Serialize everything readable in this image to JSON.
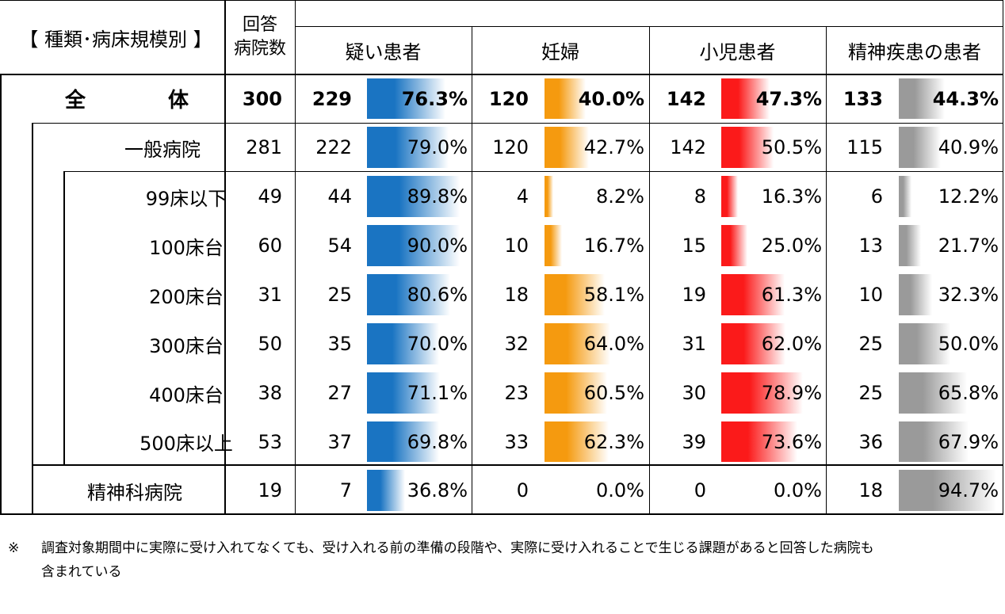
{
  "header": {
    "category_label": "【 種類･病床規模別 】",
    "respondents_label_1": "回答",
    "respondents_label_2": "病院数",
    "columns": [
      "疑い患者",
      "妊婦",
      "小児患者",
      "精神疾患の患者"
    ]
  },
  "colors": {
    "疑い患者": "#1a74c2",
    "妊婦": "#f59a0f",
    "小児患者": "#fb1a1a",
    "精神疾患の患者": "#9a9a9a"
  },
  "chart_data": {
    "type": "table",
    "columns": [
      "疑い患者",
      "妊婦",
      "小児患者",
      "精神疾患の患者"
    ],
    "rows": [
      {
        "label": "全　　　　体",
        "total": 300,
        "values": [
          [
            229,
            "76.3%"
          ],
          [
            120,
            "40.0%"
          ],
          [
            142,
            "47.3%"
          ],
          [
            133,
            "44.3%"
          ]
        ],
        "pcts": [
          76.3,
          40.0,
          47.3,
          44.3
        ]
      },
      {
        "label": "一般病院",
        "total": 281,
        "values": [
          [
            222,
            "79.0%"
          ],
          [
            120,
            "42.7%"
          ],
          [
            142,
            "50.5%"
          ],
          [
            115,
            "40.9%"
          ]
        ],
        "pcts": [
          79.0,
          42.7,
          50.5,
          40.9
        ]
      },
      {
        "label": "99床以下",
        "total": 49,
        "values": [
          [
            44,
            "89.8%"
          ],
          [
            4,
            "8.2%"
          ],
          [
            8,
            "16.3%"
          ],
          [
            6,
            "12.2%"
          ]
        ],
        "pcts": [
          89.8,
          8.2,
          16.3,
          12.2
        ]
      },
      {
        "label": "100床台",
        "total": 60,
        "values": [
          [
            54,
            "90.0%"
          ],
          [
            10,
            "16.7%"
          ],
          [
            15,
            "25.0%"
          ],
          [
            13,
            "21.7%"
          ]
        ],
        "pcts": [
          90.0,
          16.7,
          25.0,
          21.7
        ]
      },
      {
        "label": "200床台",
        "total": 31,
        "values": [
          [
            25,
            "80.6%"
          ],
          [
            18,
            "58.1%"
          ],
          [
            19,
            "61.3%"
          ],
          [
            10,
            "32.3%"
          ]
        ],
        "pcts": [
          80.6,
          58.1,
          61.3,
          32.3
        ]
      },
      {
        "label": "300床台",
        "total": 50,
        "values": [
          [
            35,
            "70.0%"
          ],
          [
            32,
            "64.0%"
          ],
          [
            31,
            "62.0%"
          ],
          [
            25,
            "50.0%"
          ]
        ],
        "pcts": [
          70.0,
          64.0,
          62.0,
          50.0
        ]
      },
      {
        "label": "400床台",
        "total": 38,
        "values": [
          [
            27,
            "71.1%"
          ],
          [
            23,
            "60.5%"
          ],
          [
            30,
            "78.9%"
          ],
          [
            25,
            "65.8%"
          ]
        ],
        "pcts": [
          71.1,
          60.5,
          78.9,
          65.8
        ]
      },
      {
        "label": "500床以上",
        "total": 53,
        "values": [
          [
            37,
            "69.8%"
          ],
          [
            33,
            "62.3%"
          ],
          [
            39,
            "73.6%"
          ],
          [
            36,
            "67.9%"
          ]
        ],
        "pcts": [
          69.8,
          62.3,
          73.6,
          67.9
        ]
      },
      {
        "label": "精神科病院",
        "total": 19,
        "values": [
          [
            7,
            "36.8%"
          ],
          [
            0,
            "0.0%"
          ],
          [
            0,
            "0.0%"
          ],
          [
            18,
            "94.7%"
          ]
        ],
        "pcts": [
          36.8,
          0.0,
          0.0,
          94.7
        ]
      }
    ]
  },
  "footnote": {
    "mark": "※",
    "line1": "調査対象期間中に実際に受け入れてなくても、受け入れる前の準備の段階や、実際に受け入れることで生じる課題があると回答した病院も",
    "line2": "含まれている"
  }
}
